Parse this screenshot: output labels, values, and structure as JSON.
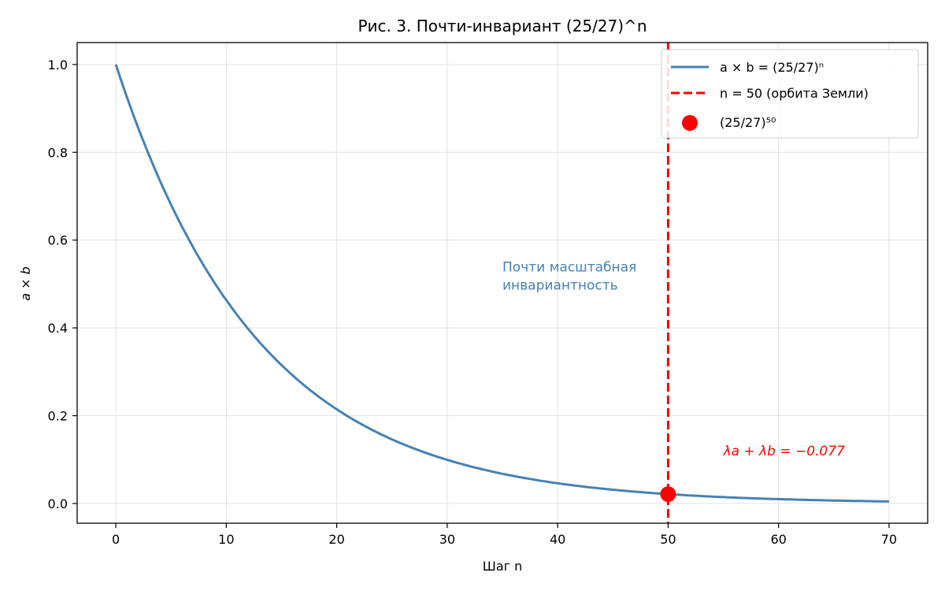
{
  "chart_data": {
    "type": "line",
    "title": "Рис. 3. Почти-инвариант (25/27)^n",
    "xlabel": "Шаг n",
    "ylabel": "a × b",
    "xlim": [
      -3.5,
      73.5
    ],
    "ylim": [
      -0.045,
      1.05
    ],
    "xticks": [
      0,
      10,
      20,
      30,
      40,
      50,
      60,
      70
    ],
    "yticks": [
      0.0,
      0.2,
      0.4,
      0.6,
      0.8,
      1.0
    ],
    "xtick_labels": [
      "0",
      "10",
      "20",
      "30",
      "40",
      "50",
      "60",
      "70"
    ],
    "ytick_labels": [
      "0.0",
      "0.2",
      "0.4",
      "0.6",
      "0.8",
      "1.0"
    ],
    "grid": true,
    "legend_position": "top-right",
    "series": [
      {
        "name": "a × b = (25/27)ⁿ",
        "kind": "line",
        "color": "#4682b4",
        "base": 0.9259259,
        "x_range": [
          0,
          70
        ]
      },
      {
        "name": "n = 50 (орбита Земли)",
        "kind": "vline",
        "color": "#ff0000",
        "x": 50
      },
      {
        "name": "(25/27)⁵⁰",
        "kind": "point",
        "color": "#ff0000",
        "x": 50,
        "y": 0.0213
      }
    ],
    "annotations": [
      {
        "lines": [
          "Почти масштабная",
          "инвариантность"
        ],
        "x": 35,
        "y": 0.5,
        "color": "#4682b4"
      },
      {
        "text": "λa + λb = −0.077",
        "x": 55,
        "y": 0.12,
        "color": "#ff0000"
      }
    ]
  }
}
